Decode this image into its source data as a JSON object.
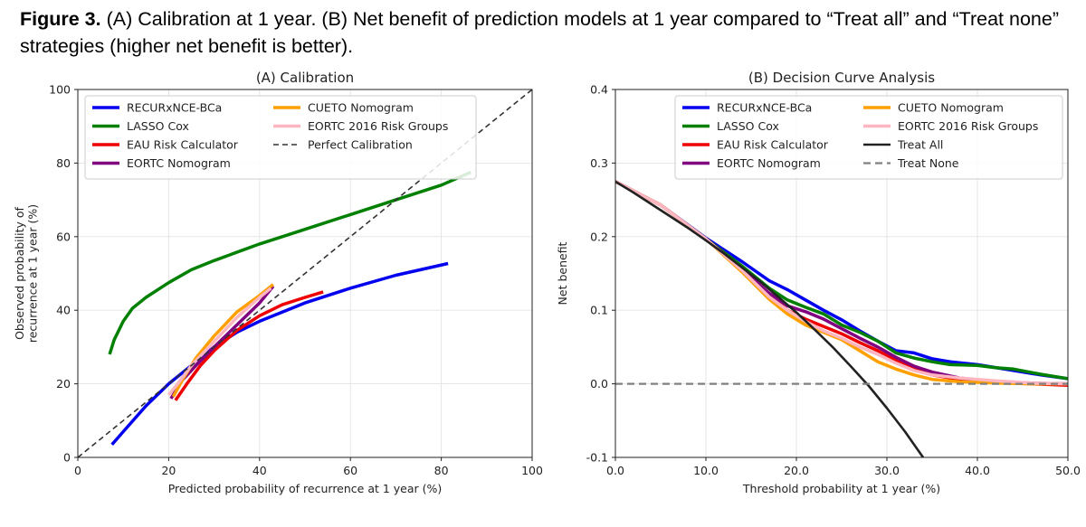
{
  "caption": {
    "label": "Figure 3.",
    "text": " (A) Calibration at 1 year. (B) Net benefit of prediction models at 1 year compared to “Treat all” and “Treat none” strategies (higher net benefit is better)."
  },
  "chart_data": [
    {
      "type": "line",
      "title": "(A) Calibration",
      "xlabel": "Predicted probability of recurrence at 1 year (%)",
      "ylabel": "Observed probability of recurrence at 1 year (%)",
      "xlim": [
        0,
        100
      ],
      "ylim": [
        0,
        100
      ],
      "xticks": [
        0,
        20,
        40,
        60,
        80,
        100
      ],
      "yticks": [
        0,
        20,
        40,
        60,
        80,
        100
      ],
      "grid": true,
      "legend_position": "top-left",
      "legend_columns": 2,
      "series": [
        {
          "name": "RECURxNCE-BCa",
          "color": "#0000ee",
          "width": 3.5,
          "dash": "none",
          "x": [
            7.5,
            10,
            15,
            20,
            25,
            30,
            35,
            40,
            50,
            60,
            70,
            81.5
          ],
          "y": [
            3.5,
            7,
            14,
            20,
            25,
            30,
            34,
            37,
            42,
            46,
            49.5,
            52.7
          ]
        },
        {
          "name": "LASSO Cox",
          "color": "#008000",
          "width": 3.5,
          "dash": "none",
          "x": [
            7,
            8,
            10,
            12,
            15,
            20,
            25,
            30,
            40,
            50,
            60,
            70,
            80,
            86.5
          ],
          "y": [
            28,
            32,
            37,
            40.5,
            43.5,
            47.5,
            51,
            53.5,
            58,
            62,
            66,
            70,
            74,
            77.5
          ]
        },
        {
          "name": "EAU Risk Calculator",
          "color": "#ee0000",
          "width": 3.5,
          "dash": "none",
          "x": [
            21.5,
            24,
            27,
            30,
            35,
            40,
            45,
            50,
            54
          ],
          "y": [
            15.5,
            20,
            25,
            29,
            34.5,
            38.5,
            41.5,
            43.5,
            45
          ]
        },
        {
          "name": "EORTC Nomogram",
          "color": "#800080",
          "width": 3.5,
          "dash": "none",
          "x": [
            20.5,
            23,
            26,
            30,
            35,
            40,
            43
          ],
          "y": [
            16,
            21,
            25,
            30,
            36,
            42,
            46.5
          ]
        },
        {
          "name": "CUETO Nomogram",
          "color": "#ffa000",
          "width": 3.5,
          "dash": "none",
          "x": [
            21,
            23,
            26,
            30,
            35,
            40,
            43
          ],
          "y": [
            16.5,
            21,
            27,
            33,
            39.5,
            44,
            47
          ]
        },
        {
          "name": "EORTC 2016 Risk Groups",
          "color": "#ffb6c1",
          "width": 3.5,
          "dash": "none",
          "x": [
            20,
            22,
            25,
            30,
            35,
            40,
            42.5
          ],
          "y": [
            17,
            20,
            25,
            31.5,
            38,
            43.5,
            46
          ]
        },
        {
          "name": "Perfect Calibration",
          "color": "#333333",
          "width": 1.6,
          "dash": "6,4",
          "x": [
            0,
            100
          ],
          "y": [
            0,
            100
          ]
        }
      ]
    },
    {
      "type": "line",
      "title": "(B) Decision Curve Analysis",
      "xlabel": "Threshold probability at 1 year (%)",
      "ylabel": "Net benefit",
      "xlim": [
        0,
        50
      ],
      "ylim": [
        -0.1,
        0.4
      ],
      "xticks": [
        0,
        10,
        20,
        30,
        40,
        50
      ],
      "yticks": [
        -0.1,
        0.0,
        0.1,
        0.2,
        0.3,
        0.4
      ],
      "grid": true,
      "legend_position": "top-right",
      "legend_columns": 2,
      "series": [
        {
          "name": "RECURxNCE-BCa",
          "color": "#0000ee",
          "width": 3.5,
          "dash": "none",
          "x": [
            0,
            5,
            10,
            14,
            17,
            19,
            21,
            23,
            25,
            27,
            29,
            31,
            33,
            35,
            37,
            40,
            44,
            47,
            50
          ],
          "y": [
            0.275,
            0.243,
            0.198,
            0.166,
            0.14,
            0.128,
            0.114,
            0.1,
            0.087,
            0.072,
            0.058,
            0.045,
            0.042,
            0.034,
            0.03,
            0.026,
            0.018,
            0.012,
            0.007
          ]
        },
        {
          "name": "LASSO Cox",
          "color": "#008000",
          "width": 3.5,
          "dash": "none",
          "x": [
            0,
            5,
            10,
            14,
            17,
            19,
            21,
            23,
            25,
            27,
            29,
            31,
            33,
            35,
            37,
            40,
            42,
            44,
            47,
            50
          ],
          "y": [
            0.275,
            0.243,
            0.197,
            0.16,
            0.13,
            0.114,
            0.104,
            0.095,
            0.08,
            0.07,
            0.058,
            0.042,
            0.035,
            0.03,
            0.026,
            0.025,
            0.022,
            0.02,
            0.013,
            0.007
          ]
        },
        {
          "name": "EAU Risk Calculator",
          "color": "#ee0000",
          "width": 3.5,
          "dash": "none",
          "x": [
            0,
            5,
            10,
            14,
            17,
            19,
            21,
            23,
            25,
            27,
            29,
            31,
            33,
            35,
            38,
            42,
            46,
            50
          ],
          "y": [
            0.275,
            0.243,
            0.197,
            0.155,
            0.12,
            0.1,
            0.088,
            0.078,
            0.068,
            0.056,
            0.045,
            0.032,
            0.02,
            0.012,
            0.006,
            0.002,
            0.0,
            -0.002
          ]
        },
        {
          "name": "EORTC Nomogram",
          "color": "#800080",
          "width": 3.5,
          "dash": "none",
          "x": [
            0,
            5,
            10,
            14,
            17,
            19,
            21,
            23,
            25,
            27,
            29,
            31,
            33,
            35,
            38,
            42,
            46,
            50
          ],
          "y": [
            0.275,
            0.243,
            0.197,
            0.156,
            0.123,
            0.106,
            0.098,
            0.088,
            0.075,
            0.062,
            0.05,
            0.036,
            0.024,
            0.016,
            0.008,
            0.003,
            0.001,
            0.0
          ]
        },
        {
          "name": "CUETO Nomogram",
          "color": "#ffa000",
          "width": 3.5,
          "dash": "none",
          "x": [
            0,
            5,
            10,
            14,
            17,
            19,
            21,
            23,
            25,
            27,
            29,
            31,
            33,
            35,
            38,
            42,
            46,
            50
          ],
          "y": [
            0.275,
            0.243,
            0.197,
            0.152,
            0.115,
            0.095,
            0.08,
            0.07,
            0.06,
            0.045,
            0.03,
            0.02,
            0.012,
            0.006,
            0.003,
            0.001,
            0.0,
            0.0
          ]
        },
        {
          "name": "EORTC 2016 Risk Groups",
          "color": "#ffb6c1",
          "width": 3.5,
          "dash": "none",
          "x": [
            0,
            5,
            10,
            14,
            17,
            19,
            21,
            23,
            25,
            27,
            29,
            31,
            33,
            35,
            38,
            42,
            46,
            50
          ],
          "y": [
            0.275,
            0.243,
            0.197,
            0.154,
            0.118,
            0.1,
            0.085,
            0.072,
            0.062,
            0.05,
            0.04,
            0.028,
            0.018,
            0.012,
            0.008,
            0.004,
            0.001,
            0.0
          ]
        },
        {
          "name": "Treat All",
          "color": "#222222",
          "width": 2.6,
          "dash": "none",
          "x": [
            0,
            2,
            4,
            6,
            8,
            10,
            12,
            14,
            16,
            18,
            20,
            22,
            24,
            26,
            28,
            30,
            32,
            34
          ],
          "y": [
            0.275,
            0.26,
            0.244,
            0.228,
            0.212,
            0.195,
            0.177,
            0.158,
            0.139,
            0.118,
            0.097,
            0.074,
            0.05,
            0.024,
            -0.003,
            -0.033,
            -0.065,
            -0.1
          ]
        },
        {
          "name": "Treat None",
          "color": "#808080",
          "width": 2.2,
          "dash": "8,5",
          "x": [
            0,
            50
          ],
          "y": [
            0,
            0
          ]
        }
      ]
    }
  ]
}
